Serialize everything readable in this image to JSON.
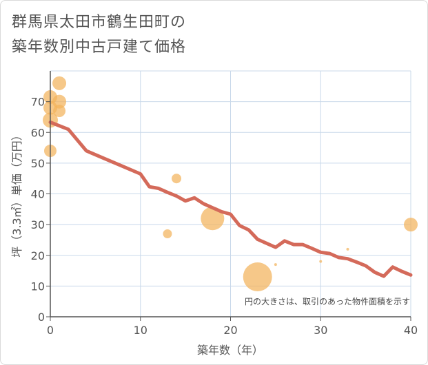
{
  "chart_data": {
    "type": "scatter",
    "title_lines": [
      "群馬県太田市鶴生田町の",
      "築年数別中古戸建て価格"
    ],
    "xlabel": "築年数（年）",
    "ylabel": "坪（3.3㎡）単価（万円）",
    "xlim": [
      0,
      40
    ],
    "ylim": [
      0,
      80
    ],
    "x_ticks": [
      0,
      10,
      20,
      30,
      40
    ],
    "y_ticks": [
      0,
      10,
      20,
      30,
      40,
      50,
      60,
      70
    ],
    "note": "円の大きさは、取引のあった物件面積を示す",
    "grid": true,
    "colors": {
      "line": "#d46a5a",
      "bubble": "#f2b35b",
      "grid": "#c8d8ea",
      "axis": "#555555"
    },
    "trend_line": {
      "x": [
        0,
        2,
        4,
        6,
        8,
        10,
        11,
        12,
        13,
        14,
        15,
        16,
        17,
        18,
        19,
        20,
        21,
        22,
        23,
        24,
        25,
        26,
        27,
        28,
        29,
        30,
        31,
        32,
        33,
        34,
        35,
        36,
        37,
        38,
        39,
        40
      ],
      "y": [
        63.3,
        61,
        54,
        51.5,
        49,
        46.5,
        42.3,
        41.8,
        40.5,
        39.3,
        37.7,
        38.7,
        36.8,
        35.5,
        34.2,
        33.4,
        29.7,
        28.3,
        25.2,
        23.9,
        22.6,
        24.7,
        23.5,
        23.5,
        22.3,
        21,
        20.6,
        19.3,
        18.9,
        17.8,
        16.6,
        14.5,
        13.2,
        16.2,
        14.8,
        13.6
      ]
    },
    "bubbles": [
      {
        "x": 0,
        "y": 71.5,
        "size": 10
      },
      {
        "x": 0,
        "y": 68,
        "size": 10
      },
      {
        "x": 0,
        "y": 64,
        "size": 11
      },
      {
        "x": 0,
        "y": 54,
        "size": 9
      },
      {
        "x": 1,
        "y": 76,
        "size": 10
      },
      {
        "x": 1,
        "y": 70,
        "size": 10
      },
      {
        "x": 1,
        "y": 67,
        "size": 9
      },
      {
        "x": 14,
        "y": 45,
        "size": 7
      },
      {
        "x": 13,
        "y": 27,
        "size": 6.5
      },
      {
        "x": 18,
        "y": 32,
        "size": 17
      },
      {
        "x": 23,
        "y": 13,
        "size": 21
      },
      {
        "x": 25,
        "y": 17,
        "size": 2
      },
      {
        "x": 30,
        "y": 18,
        "size": 2
      },
      {
        "x": 33,
        "y": 22,
        "size": 2
      },
      {
        "x": 40,
        "y": 30,
        "size": 10
      }
    ]
  }
}
